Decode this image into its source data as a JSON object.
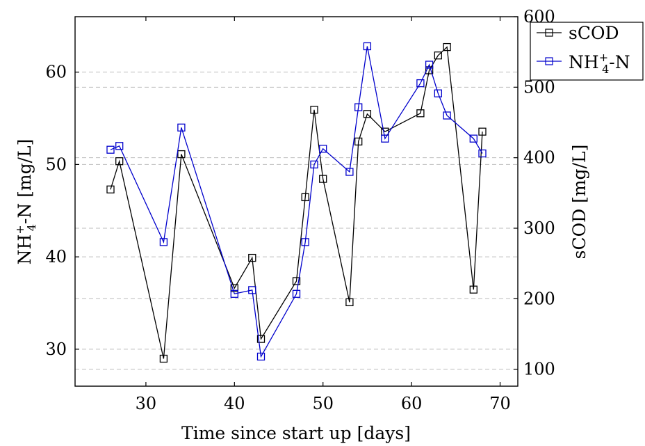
{
  "chart_data": {
    "type": "line",
    "xlabel": "Time since start up [days]",
    "ylabel_left": {
      "main": "NH",
      "sup": "+",
      "sub": "4",
      "rest": "-N [mg/L]"
    },
    "ylabel_right": "sCOD [mg/L]",
    "x_ticks": [
      30,
      40,
      50,
      60,
      70
    ],
    "left_ticks": [
      30,
      40,
      50,
      60
    ],
    "right_ticks": [
      100,
      200,
      300,
      400,
      500,
      600
    ],
    "xlim": [
      22,
      72
    ],
    "ylim_left": [
      26,
      66
    ],
    "ylim_right": [
      76,
      600
    ],
    "grid": "horizontal dashed",
    "legend_position": "top-right",
    "series": [
      {
        "name": "sCOD",
        "axis": "right",
        "color": "#000000",
        "marker": "square",
        "x": [
          26,
          27,
          32,
          34,
          40,
          42,
          43,
          47,
          48,
          49,
          50,
          53,
          54,
          55,
          57,
          61,
          62,
          63,
          64,
          67,
          68
        ],
        "y": [
          355,
          395,
          115,
          405,
          215,
          258,
          143,
          225,
          344,
          468,
          370,
          195,
          423,
          462,
          437,
          463,
          524,
          545,
          557,
          213,
          437
        ]
      },
      {
        "name_parts": {
          "main": "NH",
          "sup": "+",
          "sub": "4",
          "rest": "-N"
        },
        "axis": "left",
        "color": "#0000cc",
        "marker": "square",
        "x": [
          26,
          27,
          32,
          34,
          40,
          42,
          43,
          47,
          48,
          49,
          50,
          53,
          54,
          55,
          57,
          61,
          62,
          63,
          64,
          67,
          68
        ],
        "y": [
          51.6,
          52.0,
          41.6,
          54.0,
          36.0,
          36.4,
          29.2,
          36.0,
          41.6,
          50.0,
          51.7,
          49.2,
          56.2,
          62.8,
          52.8,
          58.8,
          60.8,
          57.7,
          55.3,
          52.8,
          51.2
        ]
      }
    ]
  }
}
